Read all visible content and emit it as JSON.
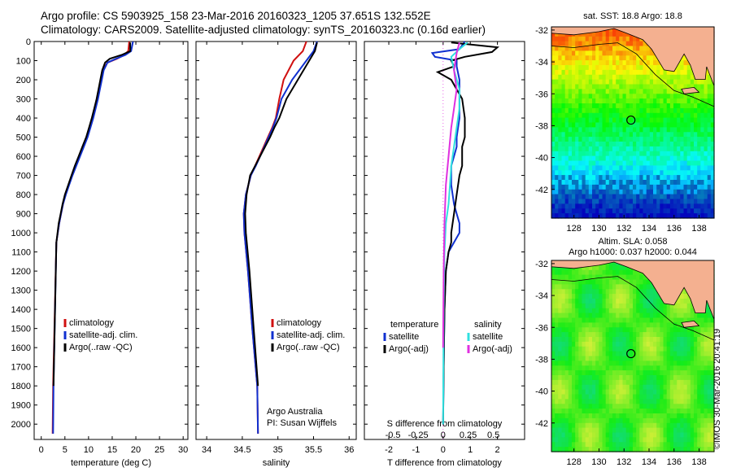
{
  "header": {
    "line1": "Argo profile: CS 5903925_158 23-Mar-2016 20160323_1205 37.651S 132.552E",
    "line2": "Climatology: CARS2009. Satellite-adjusted climatology: synTS_20160323.nc (0.16d earlier)"
  },
  "colors": {
    "climatology": "#d01010",
    "satellite": "#1030d0",
    "argo": "#000000",
    "salinity_sat": "#30e0e0",
    "salinity_argo": "#e030e0"
  },
  "chart_data": [
    {
      "type": "line",
      "id": "temperature",
      "xlabel": "temperature (deg C)",
      "ylabel": "",
      "xlim": [
        -1.5,
        31
      ],
      "ylim": [
        2080,
        0
      ],
      "xticks": [
        0,
        5,
        10,
        15,
        20,
        25,
        30
      ],
      "yticks": [
        0,
        100,
        200,
        300,
        400,
        500,
        600,
        700,
        800,
        900,
        1000,
        1100,
        1200,
        1300,
        1400,
        1500,
        1600,
        1700,
        1800,
        1900,
        2000
      ],
      "legend": [
        "climatology",
        "satellite-adj. clim.",
        "Argo(..raw -QC)"
      ],
      "series": [
        {
          "name": "climatology",
          "x": [
            18.6,
            18.4,
            17.5,
            16.0,
            14.0,
            13.0,
            12.6,
            12.2,
            11.8,
            11.3,
            10.8,
            10.2,
            9.6,
            8.8,
            8.0,
            7.2,
            6.5,
            5.8,
            5.1,
            4.6,
            4.2,
            3.8,
            3.2,
            2.5,
            2.4
          ],
          "y": [
            0,
            50,
            70,
            90,
            110,
            150,
            200,
            250,
            300,
            350,
            400,
            450,
            500,
            550,
            600,
            650,
            700,
            750,
            800,
            850,
            900,
            950,
            1050,
            1800,
            2050
          ]
        },
        {
          "name": "satellite-adj. clim.",
          "x": [
            19.4,
            19.0,
            17.8,
            15.8,
            14.0,
            13.2,
            12.8,
            12.4,
            12.0,
            11.5,
            11.0,
            10.4,
            9.8,
            9.0,
            8.2,
            7.4,
            6.6,
            5.9,
            5.2,
            4.6,
            4.2,
            3.8,
            3.2,
            2.6,
            2.5
          ],
          "y": [
            0,
            50,
            70,
            90,
            110,
            150,
            200,
            250,
            300,
            350,
            400,
            450,
            500,
            550,
            600,
            650,
            700,
            750,
            800,
            850,
            900,
            950,
            1050,
            1800,
            2050
          ]
        },
        {
          "name": "Argo(..raw -QC)",
          "x": [
            18.8,
            18.8,
            17.0,
            14.5,
            13.5,
            12.9,
            12.5,
            12.1,
            11.7,
            11.2,
            10.7,
            10.1,
            9.5,
            8.7,
            7.9,
            7.1,
            6.4,
            5.7,
            5.0,
            4.5,
            4.1,
            3.7,
            3.2,
            2.6
          ],
          "y": [
            5,
            50,
            70,
            90,
            110,
            150,
            200,
            250,
            300,
            350,
            400,
            450,
            500,
            550,
            600,
            650,
            700,
            750,
            800,
            850,
            900,
            950,
            1050,
            1800
          ]
        }
      ]
    },
    {
      "type": "line",
      "id": "salinity",
      "xlabel": "salinity",
      "xlim": [
        33.85,
        36.1
      ],
      "ylim": [
        2080,
        0
      ],
      "xticks": [
        34,
        34.5,
        35,
        35.5,
        36
      ],
      "legend": [
        "climatology",
        "satellite-adj. clim.",
        "Argo(..raw -QC)"
      ],
      "annotation1": "Argo Australia",
      "annotation2": "PI: Susan Wijffels",
      "series": [
        {
          "name": "climatology",
          "x": [
            35.4,
            35.35,
            35.22,
            35.08,
            35.02,
            34.97,
            34.92,
            34.86,
            34.8,
            34.74,
            34.68,
            34.62,
            34.55,
            34.52,
            34.53,
            34.58,
            34.64,
            34.71,
            34.72
          ],
          "y": [
            0,
            50,
            100,
            200,
            300,
            400,
            450,
            500,
            550,
            600,
            650,
            700,
            800,
            900,
            1000,
            1200,
            1500,
            1800,
            2050
          ]
        },
        {
          "name": "satellite-adj. clim.",
          "x": [
            35.55,
            35.5,
            35.4,
            35.2,
            35.05,
            34.98,
            34.93,
            34.87,
            34.81,
            34.75,
            34.69,
            34.62,
            34.55,
            34.52,
            34.53,
            34.58,
            34.64,
            34.71,
            34.72
          ],
          "y": [
            0,
            50,
            100,
            200,
            300,
            400,
            450,
            500,
            550,
            600,
            650,
            700,
            800,
            900,
            1000,
            1200,
            1500,
            1800,
            2050
          ]
        },
        {
          "name": "Argo(..raw -QC)",
          "x": [
            35.55,
            35.52,
            35.44,
            35.28,
            35.12,
            35.02,
            34.95,
            34.89,
            34.82,
            34.75,
            34.68,
            34.61,
            34.56,
            34.54,
            34.55,
            34.6,
            34.66,
            34.72
          ],
          "y": [
            5,
            50,
            100,
            200,
            300,
            400,
            450,
            500,
            550,
            600,
            650,
            700,
            800,
            900,
            1000,
            1200,
            1500,
            1800
          ]
        }
      ]
    },
    {
      "type": "line",
      "id": "difference",
      "xlabel_bottom": "T difference from climatology",
      "xlabel_top": "S difference from climatology",
      "xlim": [
        -2.9,
        3.0
      ],
      "ylim": [
        2080,
        0
      ],
      "xticks_bottom": [
        -2,
        -1,
        0,
        1,
        2
      ],
      "xticks_top": [
        {
          "label": "-0.5",
          "at": -1.85
        },
        {
          "label": "-0.25",
          "at": -0.92
        },
        {
          "label": "0",
          "at": 0
        },
        {
          "label": "0.25",
          "at": 0.92
        },
        {
          "label": "0.5",
          "at": 1.85
        }
      ],
      "legend_temperature": "temperature",
      "legend_salinity": "salinity",
      "legend_entries": [
        "satellite",
        "Argo(-adj)",
        "satellite",
        "Argo(-adj)"
      ],
      "series": [
        {
          "name": "temperature satellite",
          "x": [
            0.8,
            0.6,
            -0.4,
            -0.3,
            0.5,
            0.5,
            0.6,
            0.6,
            0.6,
            0.5,
            0.5,
            0.4,
            0.3,
            0.3,
            0.3,
            0.35,
            0.4,
            0.5,
            0.6,
            0.6,
            0.4,
            0.2,
            0.1,
            0.05,
            0.02,
            0.0
          ],
          "y": [
            0,
            40,
            60,
            80,
            100,
            130,
            200,
            300,
            400,
            500,
            550,
            600,
            650,
            700,
            750,
            800,
            850,
            900,
            950,
            1000,
            1050,
            1100,
            1200,
            1400,
            1700,
            2000
          ]
        },
        {
          "name": "temperature Argo(-adj)",
          "x": [
            0.3,
            2.0,
            1.8,
            0.8,
            0.3,
            0.4,
            -0.2,
            0.3,
            0.7,
            0.8,
            0.8,
            0.7,
            0.7,
            0.7,
            0.6,
            0.5,
            0.4,
            0.3,
            0.3,
            0.2,
            0.1,
            0.05,
            0.02,
            0.0
          ],
          "y": [
            5,
            30,
            55,
            80,
            100,
            130,
            160,
            200,
            300,
            400,
            500,
            550,
            600,
            650,
            700,
            800,
            900,
            1000,
            1050,
            1100,
            1200,
            1400,
            1700,
            2000
          ]
        },
        {
          "name": "salinity satellite",
          "x": [
            0.9,
            0.6,
            0.3,
            0.4,
            0.6,
            0.6,
            0.5,
            0.4,
            0.3,
            0.25,
            0.2,
            0.1,
            0.05,
            0.02,
            0.0
          ],
          "y": [
            5,
            40,
            80,
            150,
            250,
            350,
            450,
            550,
            650,
            750,
            850,
            950,
            1100,
            1400,
            2000
          ]
        },
        {
          "name": "salinity Argo(-adj)",
          "x": [
            0.6,
            0.5,
            0.4,
            0.5,
            0.4,
            0.3,
            0.2,
            0.1,
            0.05,
            0.02,
            0.0
          ],
          "y": [
            5,
            60,
            150,
            250,
            350,
            450,
            600,
            750,
            950,
            1200,
            1600
          ]
        }
      ]
    },
    {
      "type": "heatmap",
      "id": "sst",
      "title": "sat. SST: 18.8  Argo: 18.8",
      "xlim": [
        126.2,
        139.2
      ],
      "ylim": [
        -43.8,
        -31.8
      ],
      "xticks": [
        128,
        130,
        132,
        134,
        136,
        138
      ],
      "yticks": [
        -32,
        -34,
        -36,
        -38,
        -40,
        -42
      ],
      "marker": {
        "lon": 132.552,
        "lat": -37.651
      }
    },
    {
      "type": "heatmap",
      "id": "sla",
      "title1": "Altim. SLA: 0.058",
      "title2": "Argo h1000: 0.037 h2000: 0.044",
      "xlim": [
        126.2,
        139.2
      ],
      "ylim": [
        -43.8,
        -31.8
      ],
      "xticks": [
        128,
        130,
        132,
        134,
        136,
        138
      ],
      "yticks": [
        -32,
        -34,
        -36,
        -38,
        -40,
        -42
      ],
      "marker": {
        "lon": 132.552,
        "lat": -37.651
      }
    }
  ],
  "credit": "©IMOS 30-Mar-2016 20:41:19"
}
